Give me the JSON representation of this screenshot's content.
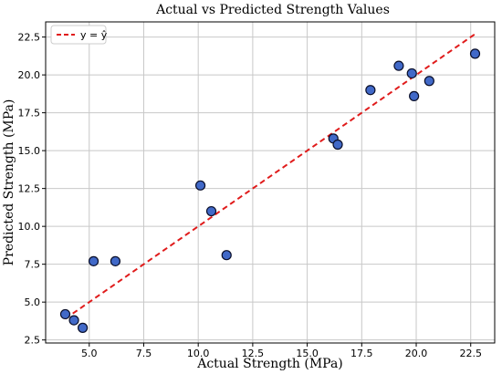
{
  "chart_data": {
    "type": "scatter",
    "title": "Actual vs Predicted Strength Values",
    "xlabel": "Actual Strength (MPa)",
    "ylabel": "Predicted Strength (MPa)",
    "xlim": [
      3.0,
      23.6
    ],
    "ylim": [
      2.3,
      23.5
    ],
    "xticks": [
      5.0,
      7.5,
      10.0,
      12.5,
      15.0,
      17.5,
      20.0,
      22.5
    ],
    "yticks": [
      2.5,
      5.0,
      7.5,
      10.0,
      12.5,
      15.0,
      17.5,
      20.0,
      22.5
    ],
    "xtick_labels": [
      "5.0",
      "7.5",
      "10.0",
      "12.5",
      "15.0",
      "17.5",
      "20.0",
      "22.5"
    ],
    "ytick_labels": [
      "2.5",
      "5.0",
      "7.5",
      "10.0",
      "12.5",
      "15.0",
      "17.5",
      "20.0",
      "22.5"
    ],
    "grid": true,
    "legend": {
      "position": "top-left",
      "entries": [
        "y = ŷ"
      ]
    },
    "points": [
      {
        "x": 3.9,
        "y": 4.2
      },
      {
        "x": 4.3,
        "y": 3.8
      },
      {
        "x": 4.7,
        "y": 3.3
      },
      {
        "x": 5.2,
        "y": 7.7
      },
      {
        "x": 6.2,
        "y": 7.7
      },
      {
        "x": 10.1,
        "y": 12.7
      },
      {
        "x": 10.6,
        "y": 11.0
      },
      {
        "x": 11.3,
        "y": 8.1
      },
      {
        "x": 16.2,
        "y": 15.8
      },
      {
        "x": 16.4,
        "y": 15.4
      },
      {
        "x": 17.9,
        "y": 19.0
      },
      {
        "x": 19.2,
        "y": 20.6
      },
      {
        "x": 19.8,
        "y": 20.1
      },
      {
        "x": 19.9,
        "y": 18.6
      },
      {
        "x": 20.6,
        "y": 19.6
      },
      {
        "x": 22.7,
        "y": 21.4
      }
    ],
    "reference_line": {
      "name": "y = ŷ",
      "x": [
        3.9,
        22.7
      ],
      "y": [
        3.9,
        22.7
      ]
    },
    "colors": {
      "point_fill": "#4169c8",
      "point_edge": "#0a0f2a",
      "reference_line": "#e01b1b",
      "grid": "#c8c8c8"
    }
  }
}
